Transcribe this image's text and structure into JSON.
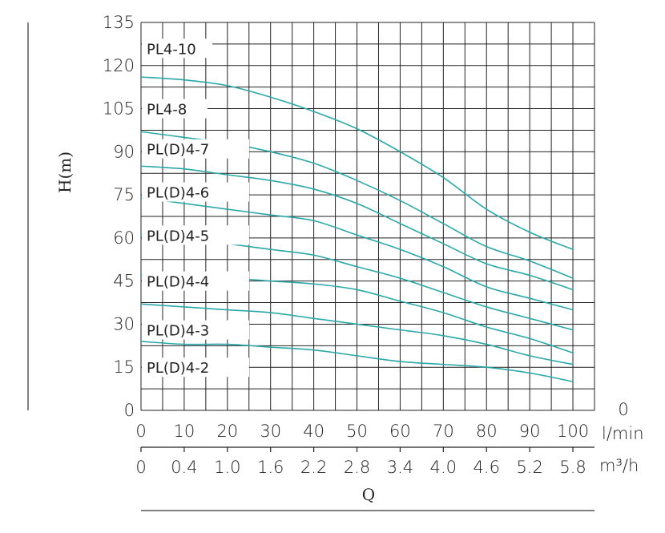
{
  "chart_data": {
    "type": "line",
    "xlabel": "Q",
    "ylabel": "H(m)",
    "x_unit": "l/min",
    "x2_unit": "m³/h",
    "x_end_label": "0",
    "xlim": [
      0,
      105
    ],
    "ylim": [
      0,
      135
    ],
    "x_ticks": [
      "0",
      "10",
      "20",
      "30",
      "40",
      "50",
      "60",
      "70",
      "80",
      "90",
      "100"
    ],
    "x2_ticks": [
      "0",
      "0.4",
      "1.0",
      "1.6",
      "2.2",
      "2.8",
      "3.4",
      "4.0",
      "4.6",
      "5.2",
      "5.8"
    ],
    "y_ticks": [
      "0",
      "15",
      "30",
      "45",
      "60",
      "75",
      "90",
      "105",
      "120",
      "135"
    ],
    "grid": true,
    "line_color": "#2aa8a8",
    "series": [
      {
        "name": "PL4-10",
        "x": [
          0,
          10,
          20,
          30,
          40,
          50,
          60,
          70,
          80,
          90,
          100
        ],
        "y": [
          116,
          115,
          113,
          109,
          104,
          98,
          90,
          81,
          70,
          62,
          56
        ]
      },
      {
        "name": "PL4-8",
        "x": [
          0,
          10,
          20,
          30,
          40,
          50,
          60,
          70,
          80,
          90,
          100
        ],
        "y": [
          97,
          95,
          93,
          90,
          86,
          80,
          73,
          65,
          57,
          52,
          46
        ]
      },
      {
        "name": "PL(D)4-7",
        "x": [
          0,
          10,
          20,
          30,
          40,
          50,
          60,
          70,
          80,
          90,
          100
        ],
        "y": [
          85,
          84,
          82,
          80,
          77,
          72,
          65,
          58,
          51,
          47,
          42
        ]
      },
      {
        "name": "PL(D)4-6",
        "x": [
          0,
          10,
          20,
          30,
          40,
          50,
          60,
          70,
          80,
          90,
          100
        ],
        "y": [
          74,
          72,
          70,
          68,
          66,
          61,
          56,
          50,
          43,
          39,
          35
        ]
      },
      {
        "name": "PL(D)4-5",
        "x": [
          0,
          10,
          20,
          30,
          40,
          50,
          60,
          70,
          80,
          90,
          100
        ],
        "y": [
          61,
          60,
          58,
          56,
          54,
          50,
          46,
          41,
          36,
          32,
          28
        ]
      },
      {
        "name": "PL(D)4-4",
        "x": [
          0,
          10,
          20,
          30,
          40,
          50,
          60,
          70,
          80,
          90,
          100
        ],
        "y": [
          47,
          46,
          46,
          45,
          44,
          42,
          38,
          34,
          29,
          25,
          20
        ]
      },
      {
        "name": "PL(D)4-3",
        "x": [
          0,
          10,
          20,
          30,
          40,
          50,
          60,
          70,
          80,
          90,
          100
        ],
        "y": [
          37,
          36,
          35,
          34,
          32,
          30,
          28,
          26,
          23,
          19,
          16
        ]
      },
      {
        "name": "PL(D)4-2",
        "x": [
          0,
          10,
          20,
          30,
          40,
          50,
          60,
          70,
          80,
          90,
          100
        ],
        "y": [
          24,
          23,
          23,
          22,
          21,
          19,
          17,
          16,
          15,
          13,
          10
        ]
      }
    ]
  }
}
